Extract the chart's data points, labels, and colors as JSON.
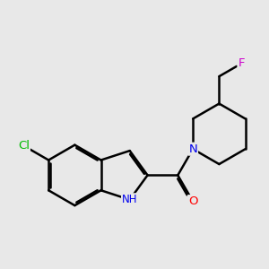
{
  "bg_color": "#e8e8e8",
  "bond_color": "#000000",
  "bond_width": 1.8,
  "atom_colors": {
    "N": "#0000ee",
    "O": "#ff0000",
    "Cl": "#00bb00",
    "F": "#cc00cc",
    "C": "#000000"
  }
}
